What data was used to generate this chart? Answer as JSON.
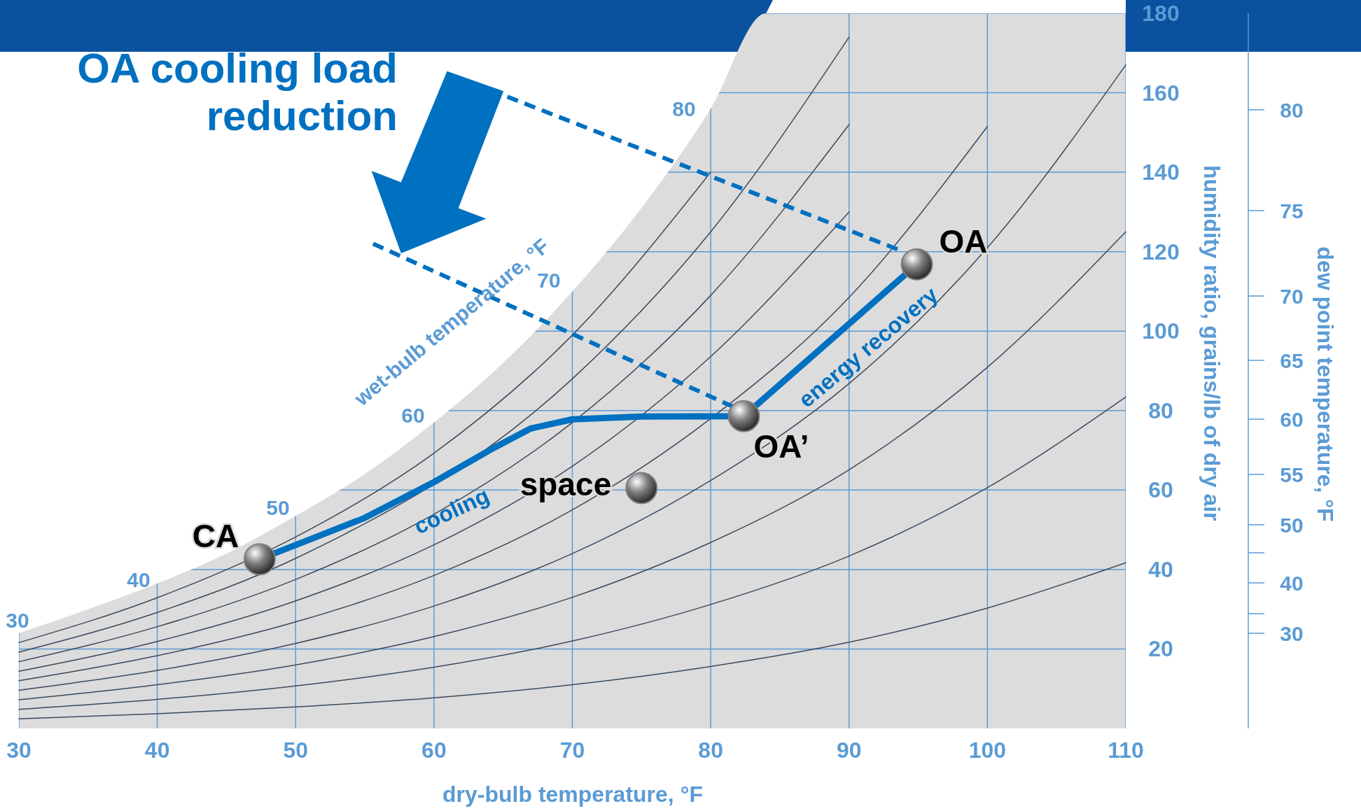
{
  "chart_data": {
    "type": "line",
    "title": "OA cooling load reduction",
    "xlabel": "dry-bulb temperature, °F",
    "ylabel": "humidity ratio, grains/lb of dry air",
    "xlim": [
      30,
      110
    ],
    "xticks": [
      30,
      40,
      50,
      60,
      70,
      80,
      90,
      100,
      110
    ],
    "ylim": [
      0,
      180
    ],
    "yticks": [
      20,
      40,
      60,
      80,
      100,
      120,
      140,
      160,
      180
    ],
    "grid": true,
    "series": [
      {
        "type": "area",
        "color": "#dcdcdc",
        "x": [
          30,
          35,
          40,
          45,
          50,
          55,
          60,
          65,
          70,
          75,
          80,
          84,
          110
        ],
        "values": [
          24,
          30,
          36.5,
          44,
          53.5,
          64,
          77,
          92,
          110,
          131,
          156,
          180,
          180
        ]
      },
      {
        "type": "line",
        "color": "#3a4a5e",
        "x": [
          30,
          40,
          50,
          60,
          70,
          80,
          90,
          100,
          110
        ],
        "values": [
          2.4,
          3.7,
          5.4,
          7.7,
          11,
          15.6,
          21.7,
          30.3,
          41.7
        ]
      },
      {
        "type": "line",
        "color": "#3a4a5e",
        "x": [
          30,
          40,
          50,
          60,
          70,
          80,
          90,
          100,
          110
        ],
        "values": [
          4.8,
          7.3,
          10.7,
          15.4,
          22,
          31.2,
          43.4,
          60.6,
          83.4
        ]
      },
      {
        "type": "line",
        "color": "#3a4a5e",
        "x": [
          30,
          40,
          50,
          60,
          70,
          80,
          90,
          100,
          110
        ],
        "values": [
          7.2,
          11,
          16,
          23.1,
          33,
          46.8,
          65.1,
          90.9,
          125
        ]
      },
      {
        "type": "line",
        "color": "#3a4a5e",
        "x": [
          30,
          40,
          50,
          60,
          70,
          80,
          90,
          100,
          110
        ],
        "values": [
          9.6,
          14.6,
          21.4,
          30.8,
          44,
          62.4,
          86.8,
          121,
          167
        ]
      },
      {
        "type": "line",
        "color": "#3a4a5e",
        "x": [
          30,
          40,
          50,
          60,
          70,
          80,
          90,
          100
        ],
        "values": [
          12,
          18.3,
          26.8,
          38.5,
          55,
          78,
          108.5,
          151.5
        ]
      },
      {
        "type": "line",
        "color": "#3a4a5e",
        "x": [
          30,
          40,
          50,
          60,
          70,
          80,
          90
        ],
        "values": [
          14.4,
          21.9,
          32.1,
          46.2,
          66,
          93.6,
          130
        ]
      },
      {
        "type": "line",
        "color": "#3a4a5e",
        "x": [
          30,
          40,
          50,
          60,
          70,
          80,
          90
        ],
        "values": [
          16.8,
          25.6,
          37.5,
          53.9,
          77,
          109,
          152
        ]
      },
      {
        "type": "line",
        "color": "#3a4a5e",
        "x": [
          30,
          40,
          50,
          60,
          70,
          80,
          90
        ],
        "values": [
          19.2,
          29.2,
          42.8,
          null,
          88,
          125,
          174
        ]
      },
      {
        "type": "line",
        "color": "#3a4a5e",
        "x": [
          30,
          40,
          50,
          60,
          70,
          80
        ],
        "values": [
          21.6,
          32.9,
          48.2,
          69.3,
          99,
          140
        ]
      },
      {
        "type": "line",
        "color": "#0070c0",
        "line_style": "dashed",
        "x": [
          65.3,
          93.5
        ],
        "values": [
          159,
          120.6
        ]
      },
      {
        "type": "line",
        "color": "#0070c0",
        "line_style": "dashed",
        "x": [
          55.6,
          81.6
        ],
        "values": [
          122,
          81
        ]
      },
      {
        "color": "#0070c0",
        "x": [
          47.4,
          55,
          60,
          64,
          67,
          70,
          75,
          82.4,
          94.9
        ],
        "values": [
          42.6,
          53,
          62,
          70,
          75.5,
          77.8,
          78.5,
          78.6,
          116.8
        ]
      },
      {
        "type": "scatter",
        "color": "#808080",
        "marker": "circle",
        "x": [
          47.4,
          82.4,
          75,
          94.9
        ],
        "values": [
          42.6,
          78.6,
          60.5,
          116.8
        ]
      }
    ],
    "annotations": [
      "CA",
      "OA’",
      "space",
      "OA",
      "cooling",
      "energy recovery",
      "wet-bulb temperature, °F",
      "30",
      "40",
      "50",
      "60",
      "70",
      "80",
      "80",
      "75",
      "70",
      "65",
      "60",
      "55",
      "50",
      "40",
      "30",
      "dew point temperature, °F"
    ]
  }
}
